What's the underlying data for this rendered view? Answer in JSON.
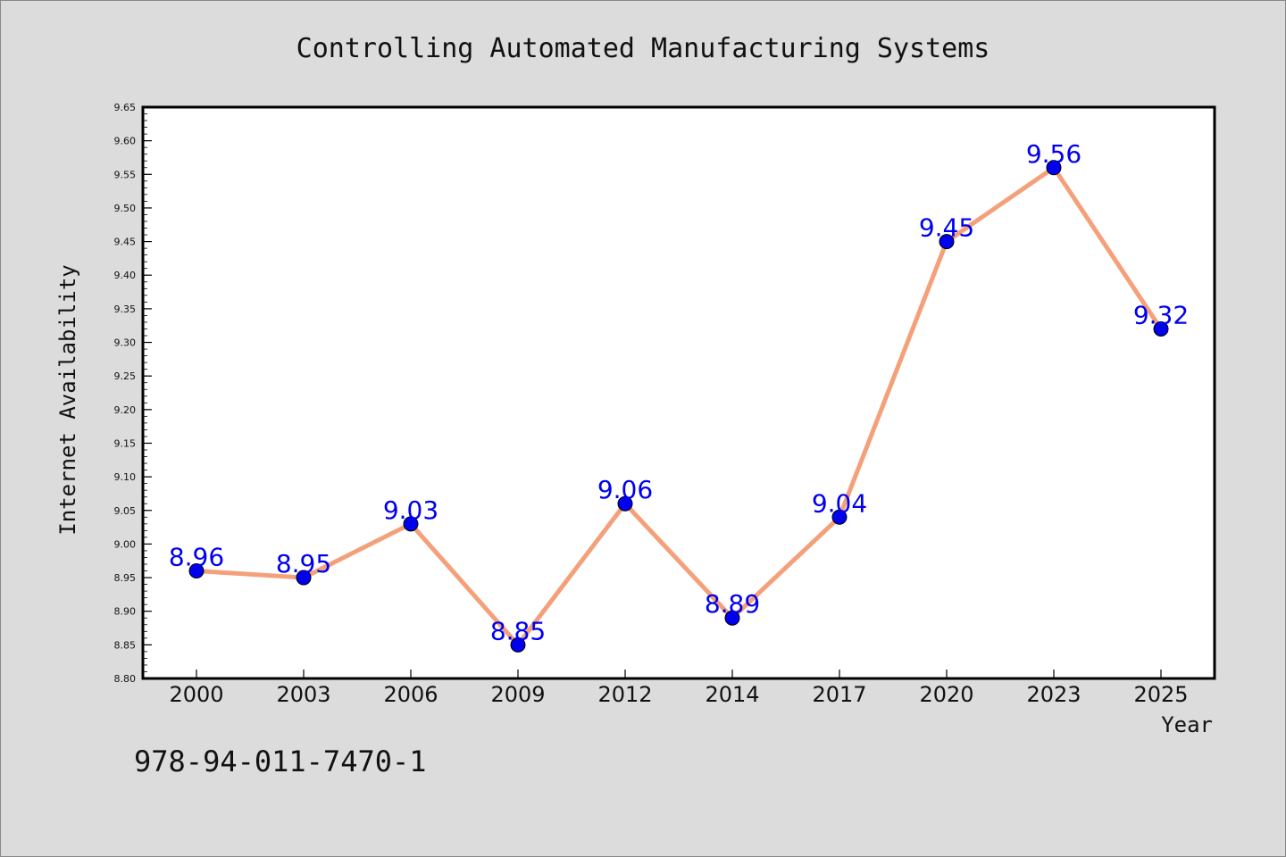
{
  "chart_data": {
    "type": "line",
    "title": "Controlling Automated Manufacturing Systems",
    "xlabel": "Year",
    "ylabel": "Internet Availability",
    "categories": [
      "2000",
      "2003",
      "2006",
      "2009",
      "2012",
      "2014",
      "2017",
      "2020",
      "2023",
      "2025"
    ],
    "series": [
      {
        "values": [
          8.96,
          8.95,
          9.03,
          8.85,
          9.06,
          8.89,
          9.04,
          9.45,
          9.56,
          9.32
        ],
        "labels": [
          "8.96",
          "8.95",
          "9.03",
          "8.85",
          "9.06",
          "8.89",
          "9.04",
          "9.45",
          "9.56",
          "9.32"
        ]
      }
    ],
    "ylim": [
      8.8,
      9.65
    ],
    "yticks": [
      "8.80",
      "8.85",
      "8.90",
      "8.95",
      "9.00",
      "9.05",
      "9.10",
      "9.15",
      "9.20",
      "9.25",
      "9.30",
      "9.35",
      "9.40",
      "9.45",
      "9.50",
      "9.55",
      "9.60",
      "9.65"
    ],
    "grid": false,
    "colors": {
      "line": "#f4a07a",
      "marker": "#0000ee",
      "data_label": "#0000ee",
      "background": "#dcdcdc",
      "plot_background": "#ffffff"
    }
  },
  "footer": {
    "isbn": "978-94-011-7470-1"
  }
}
